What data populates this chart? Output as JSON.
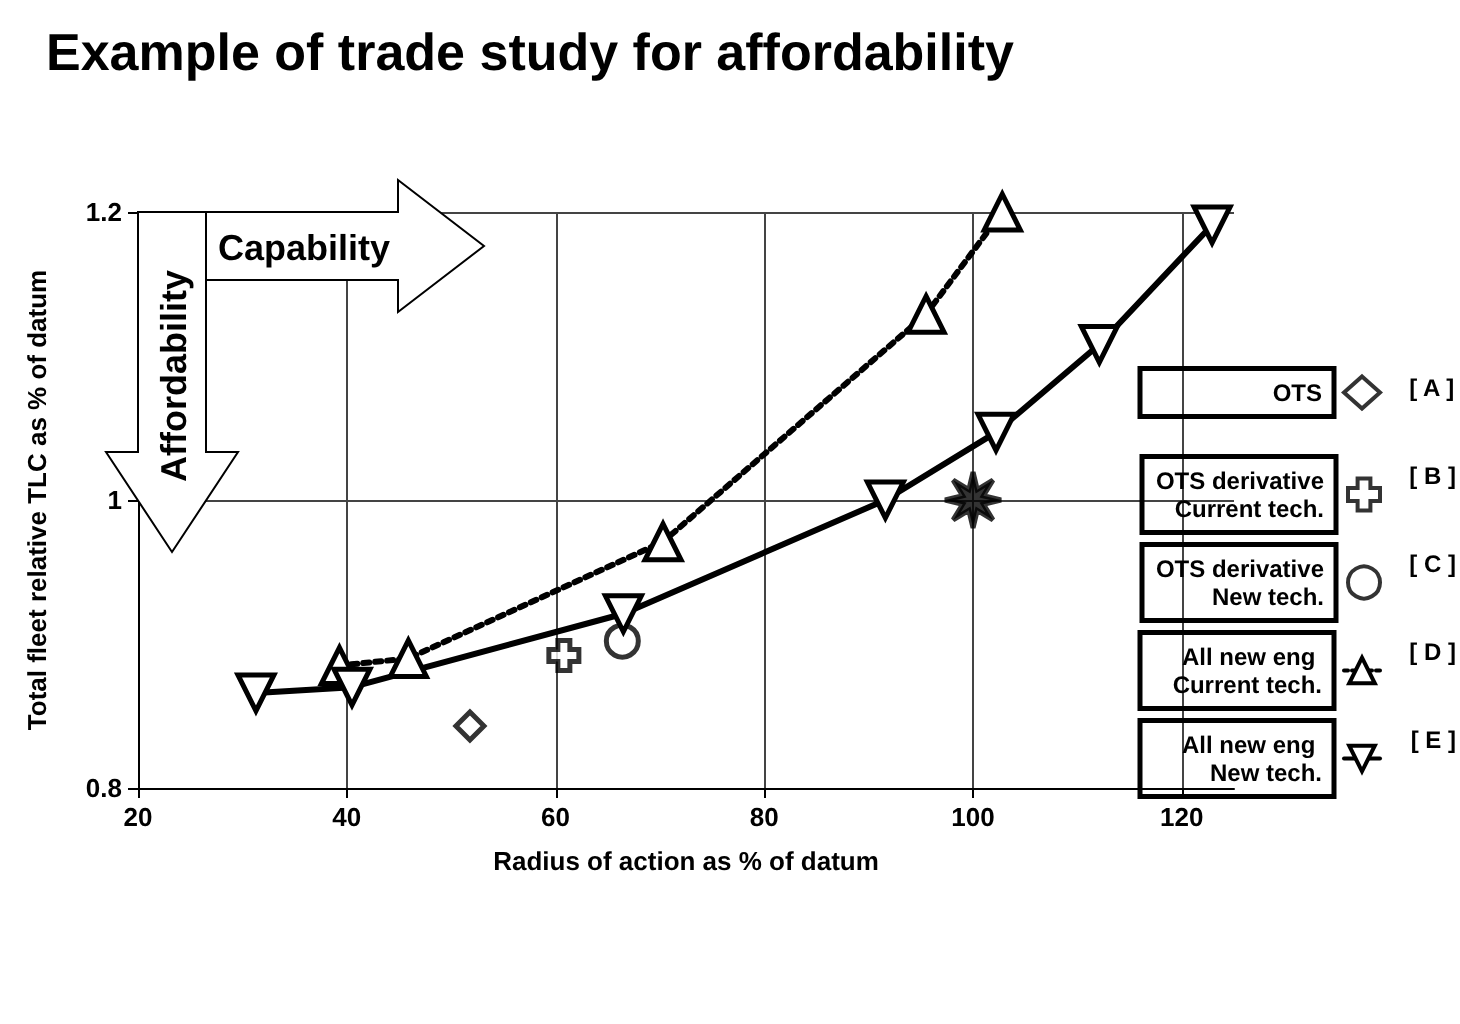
{
  "chart_data": {
    "type": "line",
    "title": "Example of trade study for affordability",
    "xlabel": "Radius of action as % of datum",
    "ylabel": "Total fleet relative TLC as % of datum",
    "xlim": [
      20,
      125
    ],
    "xticks": [
      20,
      40,
      60,
      80,
      100,
      120
    ],
    "ylim": [
      0.8,
      1.2
    ],
    "yticks": [
      {
        "value": 0.8,
        "label": "0.8"
      },
      {
        "value": 1,
        "label": "1"
      },
      {
        "value": 1.2,
        "label": "1.2"
      }
    ],
    "grid": true,
    "legend": "right",
    "annotations": [
      "Capability",
      "Affordability",
      "[ A ]",
      "[ B ]",
      "[ C ]",
      "[ D ]",
      "[ E ]"
    ],
    "series": [
      {
        "name": "OTS",
        "type": "scatter",
        "marker": "diamond",
        "color": "#000000",
        "x": [
          51.8
        ],
        "values": [
          0.843
        ]
      },
      {
        "name": "OTS derivative Current tech.",
        "type": "scatter",
        "marker": "cross",
        "color": "#000000",
        "x": [
          60.8
        ],
        "values": [
          0.892
        ]
      },
      {
        "name": "OTS derivative New tech.",
        "type": "scatter",
        "marker": "circle",
        "color": "#000000",
        "x": [
          66.4
        ],
        "values": [
          0.902
        ]
      },
      {
        "name": "All new eng Current tech.",
        "marker": "triangle",
        "line_style": "dotted",
        "color": "#000000",
        "x": [
          39.3,
          45.9,
          70.3,
          95.5,
          102.8
        ],
        "values": [
          0.885,
          0.89,
          0.971,
          1.129,
          1.2
        ]
      },
      {
        "name": "All new eng New tech.",
        "marker": "triangle-down",
        "line_style": "solid",
        "color": "#000000",
        "x": [
          31.3,
          40.5,
          66.5,
          91.6,
          102.2,
          112.1,
          122.9
        ],
        "values": [
          0.866,
          0.87,
          0.921,
          1.0,
          1.047,
          1.108,
          1.191
        ]
      },
      {
        "type": "scatter",
        "marker": "star",
        "color": "#000000",
        "x": [
          100
        ],
        "values": [
          1.0
        ]
      }
    ]
  }
}
